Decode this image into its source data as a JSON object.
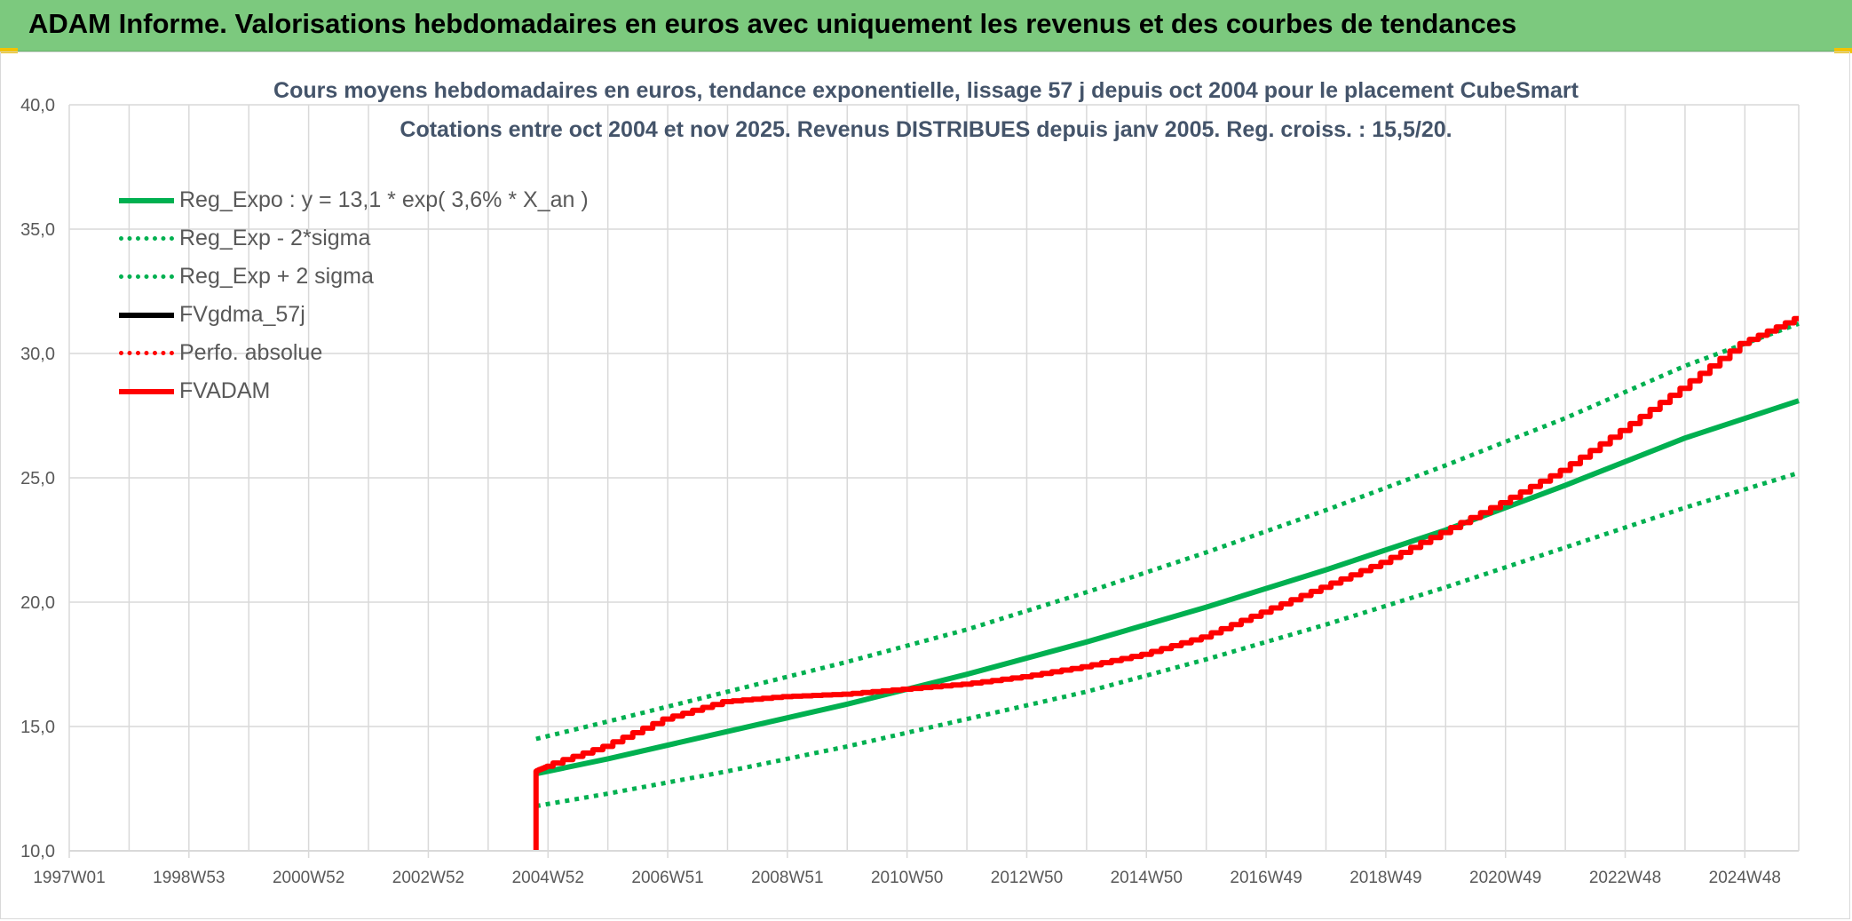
{
  "banner": {
    "title": "ADAM Informe. Valorisations hebdomadaires en euros avec uniquement les revenus et des courbes de tendances"
  },
  "chart_data": {
    "type": "line",
    "title": "Cours moyens hebdomadaires en euros, tendance exponentielle, lissage 57 j depuis oct 2004 pour le placement CubeSmart",
    "subtitle": "Cotations entre oct 2004 et nov 2025. Revenus DISTRIBUES depuis janv 2005. Reg. croiss. : 15,5/20.",
    "xlabel": "",
    "ylabel": "",
    "x_ticks": [
      "1997W01",
      "1998W53",
      "2000W52",
      "2002W52",
      "2004W52",
      "2006W51",
      "2008W51",
      "2010W50",
      "2012W50",
      "2014W50",
      "2016W49",
      "2018W49",
      "2020W49",
      "2022W48",
      "2024W48"
    ],
    "y_ticks": [
      "10,0",
      "15,0",
      "20,0",
      "25,0",
      "30,0",
      "35,0",
      "40,0"
    ],
    "ylim": [
      10,
      40
    ],
    "x_unit": "year",
    "xlim": [
      1997.0,
      2025.9
    ],
    "grid": true,
    "legend_position": "top-left",
    "colors": {
      "green": "#00b050",
      "red": "#ff0000",
      "black": "#000000",
      "grid": "#d9d9d9",
      "axis_text": "#595959"
    },
    "series": [
      {
        "name": "Reg_Expo : y = 13,1 * exp( 3,6% *  X_an )",
        "style": "solid",
        "color": "#00b050",
        "x": [
          2004.8,
          2006.0,
          2008.0,
          2010.0,
          2012.0,
          2014.0,
          2016.0,
          2018.0,
          2020.0,
          2022.0,
          2024.0,
          2025.9
        ],
        "y": [
          13.1,
          13.7,
          14.8,
          15.9,
          17.1,
          18.4,
          19.8,
          21.3,
          22.9,
          24.7,
          26.6,
          28.1
        ]
      },
      {
        "name": "Reg_Exp - 2*sigma",
        "style": "dotted",
        "color": "#00b050",
        "x": [
          2004.8,
          2006.0,
          2008.0,
          2010.0,
          2012.0,
          2014.0,
          2016.0,
          2018.0,
          2020.0,
          2022.0,
          2024.0,
          2025.9
        ],
        "y": [
          11.8,
          12.3,
          13.2,
          14.2,
          15.3,
          16.4,
          17.7,
          19.1,
          20.6,
          22.2,
          23.8,
          25.2
        ]
      },
      {
        "name": "Reg_Exp + 2 sigma",
        "style": "dotted",
        "color": "#00b050",
        "x": [
          2004.8,
          2006.0,
          2008.0,
          2010.0,
          2012.0,
          2014.0,
          2016.0,
          2018.0,
          2020.0,
          2022.0,
          2024.0,
          2025.9
        ],
        "y": [
          14.5,
          15.2,
          16.4,
          17.6,
          18.9,
          20.4,
          22.0,
          23.7,
          25.5,
          27.4,
          29.5,
          31.2
        ]
      },
      {
        "name": "FVgdma_57j",
        "style": "solid",
        "color": "#000000",
        "x": [],
        "y": []
      },
      {
        "name": "Perfo. absolue",
        "style": "dotted",
        "color": "#ff0000",
        "x": [],
        "y": []
      },
      {
        "name": "FVADAM",
        "style": "solid",
        "color": "#ff0000",
        "x": [
          2004.8,
          2004.8,
          2005.0,
          2006.0,
          2007.0,
          2008.0,
          2009.0,
          2010.0,
          2011.0,
          2012.0,
          2013.0,
          2014.0,
          2015.0,
          2016.0,
          2017.0,
          2018.0,
          2019.0,
          2020.0,
          2021.0,
          2022.0,
          2023.0,
          2024.0,
          2025.0,
          2025.9
        ],
        "y": [
          10.0,
          13.2,
          13.4,
          14.2,
          15.3,
          16.0,
          16.2,
          16.3,
          16.5,
          16.7,
          17.0,
          17.4,
          17.9,
          18.6,
          19.6,
          20.6,
          21.6,
          22.8,
          24.0,
          25.3,
          26.9,
          28.6,
          30.4,
          31.4
        ]
      }
    ]
  }
}
